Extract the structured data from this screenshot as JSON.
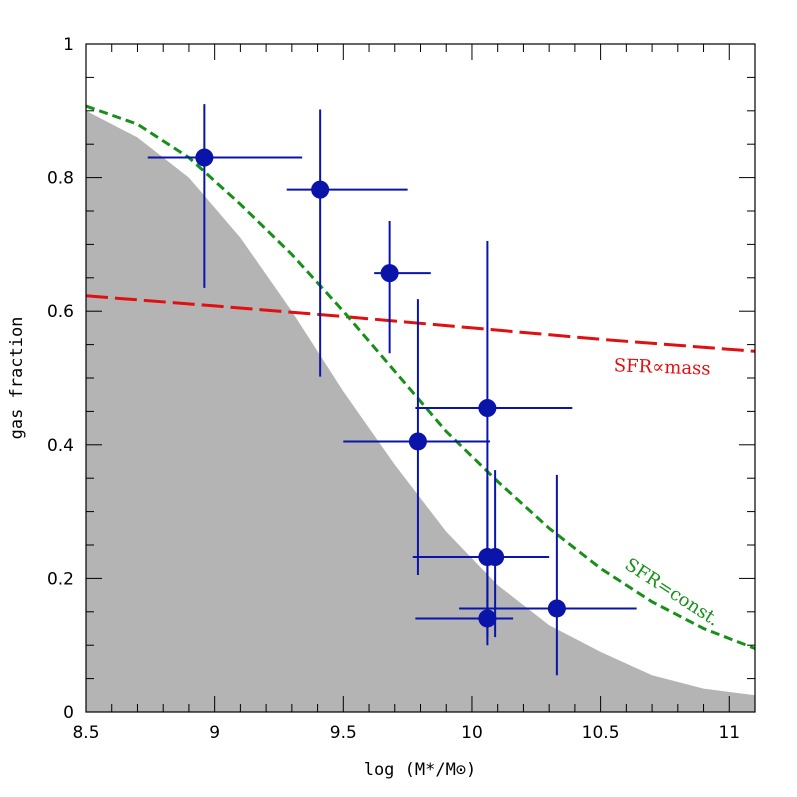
{
  "chart_data": {
    "type": "scatter",
    "xlabel": "log (M*/M⊙)",
    "ylabel": "gas fraction",
    "xlim": [
      8.5,
      11.1
    ],
    "ylim": [
      0,
      1
    ],
    "x_ticks": [
      8.5,
      9,
      9.5,
      10,
      10.5,
      11
    ],
    "x_tick_labels": [
      "8.5",
      "9",
      "9.5",
      "10",
      "10.5",
      "11"
    ],
    "y_ticks": [
      0,
      0.2,
      0.4,
      0.6,
      0.8,
      1
    ],
    "y_tick_labels": [
      "0",
      "0.2",
      "0.4",
      "0.6",
      "0.8",
      "1"
    ],
    "grid": false,
    "colors": {
      "points": "#0a14a8",
      "sfr_mass": "#e01010",
      "sfr_const": "#17901a",
      "shaded": "#b4b4b4"
    },
    "annotations": {
      "sfr_mass": "SFR∝mass",
      "sfr_const": "SFR=const."
    },
    "points": [
      {
        "x": 8.96,
        "y": 0.83,
        "xerr": [
          0.22,
          0.38
        ],
        "yerr": [
          0.195,
          0.08
        ]
      },
      {
        "x": 9.41,
        "y": 0.782,
        "xerr": [
          0.13,
          0.34
        ],
        "yerr": [
          0.28,
          0.12
        ]
      },
      {
        "x": 9.68,
        "y": 0.657,
        "xerr": [
          0.06,
          0.16
        ],
        "yerr": [
          0.12,
          0.078
        ]
      },
      {
        "x": 9.79,
        "y": 0.405,
        "xerr": [
          0.29,
          0.28
        ],
        "yerr": [
          0.2,
          0.213
        ]
      },
      {
        "x": 10.06,
        "y": 0.455,
        "xerr": [
          0.28,
          0.33
        ],
        "yerr": [
          0.25,
          0.25
        ]
      },
      {
        "x": 10.06,
        "y": 0.232,
        "xerr": [
          0.03,
          0.06
        ],
        "yerr": [
          0.12,
          0.12
        ]
      },
      {
        "x": 10.09,
        "y": 0.232,
        "xerr": [
          0.32,
          0.21
        ],
        "yerr": [
          0.12,
          0.13
        ]
      },
      {
        "x": 10.06,
        "y": 0.14,
        "xerr": [
          0.28,
          0.1
        ],
        "yerr": [
          0.04,
          0.07
        ]
      },
      {
        "x": 10.33,
        "y": 0.155,
        "xerr": [
          0.38,
          0.31
        ],
        "yerr": [
          0.1,
          0.2
        ]
      }
    ],
    "lines": {
      "sfr_mass": {
        "x": [
          8.5,
          9,
          9.5,
          10,
          10.5,
          11.1
        ],
        "y": [
          0.623,
          0.608,
          0.592,
          0.575,
          0.558,
          0.54
        ]
      },
      "sfr_const": {
        "x": [
          8.5,
          8.7,
          8.9,
          9.1,
          9.3,
          9.5,
          9.7,
          9.9,
          10.1,
          10.3,
          10.5,
          10.7,
          10.9,
          11.1
        ],
        "y": [
          0.907,
          0.88,
          0.83,
          0.76,
          0.685,
          0.6,
          0.51,
          0.42,
          0.345,
          0.275,
          0.215,
          0.165,
          0.125,
          0.095
        ]
      }
    },
    "shaded_region": {
      "x": [
        8.5,
        8.7,
        8.9,
        9.1,
        9.3,
        9.5,
        9.7,
        9.9,
        10.1,
        10.3,
        10.5,
        10.7,
        10.9,
        11.1
      ],
      "y": [
        0.9,
        0.86,
        0.8,
        0.71,
        0.6,
        0.48,
        0.37,
        0.27,
        0.19,
        0.13,
        0.09,
        0.055,
        0.035,
        0.025
      ]
    }
  }
}
